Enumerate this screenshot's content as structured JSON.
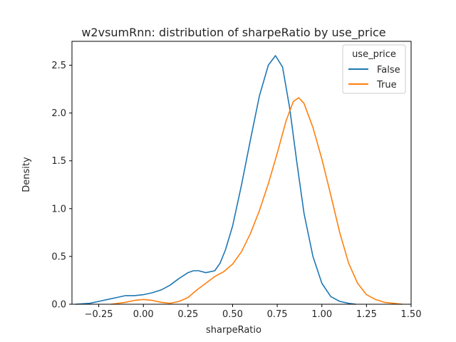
{
  "chart_data": {
    "type": "line",
    "title": "w2vsumRnn: distribution of sharpeRatio by use_price",
    "xlabel": "sharpeRatio",
    "ylabel": "Density",
    "xlim": [
      -0.4,
      1.5
    ],
    "ylim": [
      0,
      2.75
    ],
    "xticks": [
      -0.25,
      0.0,
      0.25,
      0.5,
      0.75,
      1.0,
      1.25,
      1.5
    ],
    "xtick_labels": [
      "−0.25",
      "0.00",
      "0.25",
      "0.50",
      "0.75",
      "1.00",
      "1.25",
      "1.50"
    ],
    "yticks": [
      0.0,
      0.5,
      1.0,
      1.5,
      2.0,
      2.5
    ],
    "ytick_labels": [
      "0.0",
      "0.5",
      "1.0",
      "1.5",
      "2.0",
      "2.5"
    ],
    "grid": false,
    "legend": {
      "title": "use_price",
      "placement": "top-right"
    },
    "series": [
      {
        "name": "False",
        "color": "#1f77b4",
        "x": [
          -0.38,
          -0.3,
          -0.25,
          -0.2,
          -0.15,
          -0.1,
          -0.05,
          0.0,
          0.05,
          0.1,
          0.15,
          0.2,
          0.25,
          0.28,
          0.31,
          0.35,
          0.4,
          0.43,
          0.46,
          0.5,
          0.55,
          0.6,
          0.65,
          0.7,
          0.74,
          0.78,
          0.82,
          0.86,
          0.9,
          0.95,
          1.0,
          1.05,
          1.1,
          1.15,
          1.19
        ],
        "y": [
          0.0,
          0.01,
          0.03,
          0.05,
          0.07,
          0.09,
          0.09,
          0.1,
          0.12,
          0.15,
          0.2,
          0.27,
          0.33,
          0.35,
          0.35,
          0.33,
          0.35,
          0.43,
          0.57,
          0.82,
          1.25,
          1.72,
          2.18,
          2.5,
          2.6,
          2.48,
          2.05,
          1.48,
          0.95,
          0.5,
          0.22,
          0.08,
          0.03,
          0.01,
          0.0
        ]
      },
      {
        "name": "True",
        "color": "#ff7f0e",
        "x": [
          -0.18,
          -0.1,
          -0.05,
          0.0,
          0.05,
          0.1,
          0.15,
          0.2,
          0.25,
          0.3,
          0.35,
          0.4,
          0.45,
          0.5,
          0.55,
          0.6,
          0.65,
          0.7,
          0.75,
          0.8,
          0.84,
          0.87,
          0.9,
          0.95,
          1.0,
          1.05,
          1.1,
          1.15,
          1.2,
          1.25,
          1.3,
          1.35,
          1.4,
          1.45
        ],
        "y": [
          0.0,
          0.02,
          0.04,
          0.05,
          0.04,
          0.02,
          0.01,
          0.03,
          0.07,
          0.15,
          0.22,
          0.29,
          0.34,
          0.42,
          0.55,
          0.74,
          0.98,
          1.26,
          1.58,
          1.92,
          2.12,
          2.16,
          2.1,
          1.85,
          1.52,
          1.14,
          0.75,
          0.43,
          0.22,
          0.1,
          0.05,
          0.02,
          0.01,
          0.0
        ]
      }
    ]
  }
}
